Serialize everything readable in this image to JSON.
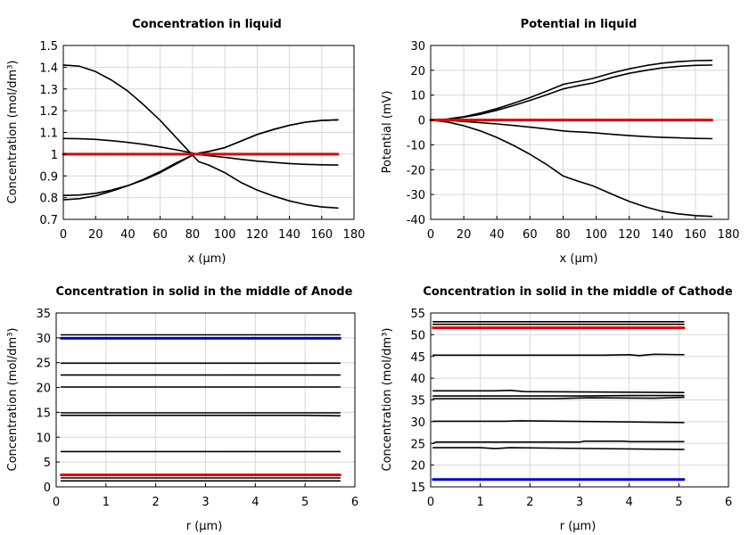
{
  "chart_data": [
    {
      "type": "line",
      "title": "Concentration in liquid",
      "xlabel": "x (µm)",
      "ylabel": "Concentration (mol/dm³)",
      "xlim": [
        0,
        180
      ],
      "ylim": [
        0.7,
        1.5
      ],
      "xticks": [
        "0",
        "20",
        "40",
        "60",
        "80",
        "100",
        "120",
        "140",
        "160",
        "180"
      ],
      "yticks": [
        "0.7",
        "0.8",
        "0.9",
        "1",
        "1.1",
        "1.2",
        "1.3",
        "1.4",
        "1.5"
      ],
      "grid": true,
      "series": [
        {
          "color": "#000000",
          "x": [
            0,
            10,
            20,
            30,
            40,
            50,
            60,
            70,
            80,
            84,
            90,
            100,
            110,
            120,
            130,
            140,
            150,
            160,
            170
          ],
          "y": [
            1.41,
            1.405,
            1.38,
            1.34,
            1.29,
            1.225,
            1.155,
            1.075,
            0.995,
            0.965,
            0.95,
            0.915,
            0.87,
            0.835,
            0.808,
            0.785,
            0.768,
            0.757,
            0.752
          ]
        },
        {
          "color": "#000000",
          "x": [
            0,
            10,
            20,
            30,
            40,
            50,
            60,
            70,
            80,
            84,
            90,
            100,
            110,
            120,
            130,
            140,
            150,
            160,
            170
          ],
          "y": [
            1.072,
            1.071,
            1.068,
            1.062,
            1.054,
            1.045,
            1.033,
            1.02,
            1.005,
            0.998,
            0.993,
            0.985,
            0.976,
            0.968,
            0.962,
            0.957,
            0.953,
            0.951,
            0.95
          ]
        },
        {
          "color": "#000000",
          "x": [
            0,
            10,
            20,
            30,
            40,
            50,
            60,
            70,
            80,
            84,
            90,
            100,
            110,
            120,
            130,
            140,
            150,
            160,
            170
          ],
          "y": [
            0.81,
            0.812,
            0.82,
            0.835,
            0.855,
            0.882,
            0.915,
            0.955,
            0.995,
            1.005,
            1.012,
            1.03,
            1.06,
            1.09,
            1.113,
            1.133,
            1.147,
            1.155,
            1.158
          ]
        },
        {
          "color": "#000000",
          "x": [
            0,
            10,
            20,
            30,
            40,
            50,
            60,
            70,
            80,
            84,
            90,
            100,
            110,
            120,
            130,
            140,
            150,
            160,
            170
          ],
          "y": [
            0.79,
            0.795,
            0.808,
            0.83,
            0.855,
            0.885,
            0.92,
            0.96,
            0.995,
            1.005,
            1.012,
            1.03,
            1.06,
            1.09,
            1.113,
            1.133,
            1.147,
            1.155,
            1.158
          ]
        },
        {
          "color": "#e00000",
          "x": [
            0,
            170
          ],
          "y": [
            1.0,
            1.0
          ]
        }
      ]
    },
    {
      "type": "line",
      "title": "Potential in liquid",
      "xlabel": "x (µm)",
      "ylabel": "Potential (mV)",
      "xlim": [
        0,
        180
      ],
      "ylim": [
        -40,
        30
      ],
      "xticks": [
        "0",
        "20",
        "40",
        "60",
        "80",
        "100",
        "120",
        "140",
        "160",
        "180"
      ],
      "yticks": [
        "-40",
        "-30",
        "-20",
        "-10",
        "0",
        "10",
        "20",
        "30"
      ],
      "grid": true,
      "series": [
        {
          "color": "#000000",
          "x": [
            0,
            10,
            20,
            30,
            40,
            50,
            60,
            70,
            80,
            84,
            90,
            98,
            110,
            120,
            130,
            140,
            150,
            160,
            170
          ],
          "y": [
            0,
            0.4,
            1.3,
            2.8,
            4.6,
            6.7,
            9.0,
            11.6,
            14.3,
            14.9,
            15.6,
            16.7,
            19.0,
            20.6,
            21.9,
            22.9,
            23.5,
            23.9,
            24.0
          ]
        },
        {
          "color": "#000000",
          "x": [
            0,
            10,
            20,
            30,
            40,
            50,
            60,
            70,
            80,
            84,
            90,
            98,
            110,
            120,
            130,
            140,
            150,
            160,
            170
          ],
          "y": [
            0,
            0.3,
            1.1,
            2.3,
            3.9,
            5.8,
            7.9,
            10.1,
            12.5,
            13.1,
            13.9,
            14.9,
            17.2,
            18.8,
            20.0,
            21.0,
            21.6,
            22.0,
            22.1
          ]
        },
        {
          "color": "#000000",
          "x": [
            0,
            10,
            20,
            30,
            40,
            50,
            60,
            70,
            80,
            84,
            90,
            98,
            110,
            120,
            130,
            140,
            150,
            160,
            170
          ],
          "y": [
            0,
            -0.2,
            -0.6,
            -1.1,
            -1.6,
            -2.2,
            -2.9,
            -3.6,
            -4.4,
            -4.6,
            -4.8,
            -5.1,
            -5.8,
            -6.3,
            -6.7,
            -7.0,
            -7.2,
            -7.4,
            -7.5
          ]
        },
        {
          "color": "#000000",
          "x": [
            0,
            10,
            20,
            30,
            40,
            50,
            60,
            70,
            80,
            84,
            90,
            98,
            110,
            120,
            130,
            140,
            150,
            160,
            170
          ],
          "y": [
            0,
            -0.8,
            -2.3,
            -4.4,
            -7.0,
            -10.2,
            -13.8,
            -17.9,
            -22.5,
            -23.5,
            -24.8,
            -26.5,
            -30.0,
            -32.8,
            -35.0,
            -36.8,
            -37.8,
            -38.5,
            -38.8
          ]
        },
        {
          "color": "#e00000",
          "x": [
            0,
            170
          ],
          "y": [
            0,
            0
          ]
        }
      ]
    },
    {
      "type": "line",
      "title": "Concentration in solid in the middle of Anode",
      "xlabel": "r (µm)",
      "ylabel": "Concentration (mol/dm³)",
      "xlim": [
        0,
        6
      ],
      "ylim": [
        0,
        35
      ],
      "xticks": [
        "0",
        "1",
        "2",
        "3",
        "4",
        "5",
        "6"
      ],
      "yticks": [
        "0",
        "5",
        "10",
        "15",
        "20",
        "25",
        "30",
        "35"
      ],
      "grid": true,
      "series": [
        {
          "color": "#000000",
          "x": [
            0.1,
            5.7
          ],
          "y": [
            30.6,
            30.6
          ]
        },
        {
          "color": "#0000cc",
          "x": [
            0.1,
            5.7
          ],
          "y": [
            29.9,
            29.9
          ]
        },
        {
          "color": "#000000",
          "x": [
            0.1,
            5.7
          ],
          "y": [
            24.9,
            24.9
          ]
        },
        {
          "color": "#000000",
          "x": [
            0.1,
            5.7
          ],
          "y": [
            22.5,
            22.5
          ]
        },
        {
          "color": "#000000",
          "x": [
            0.1,
            5.7
          ],
          "y": [
            20.1,
            20.1
          ]
        },
        {
          "color": "#000000",
          "x": [
            0.1,
            5.7
          ],
          "y": [
            14.9,
            14.9
          ]
        },
        {
          "color": "#000000",
          "x": [
            0.1,
            5.0,
            5.7
          ],
          "y": [
            14.4,
            14.4,
            14.3
          ]
        },
        {
          "color": "#000000",
          "x": [
            0.1,
            5.7
          ],
          "y": [
            7.1,
            7.1
          ]
        },
        {
          "color": "#e00000",
          "x": [
            0.1,
            5.7
          ],
          "y": [
            2.4,
            2.4
          ]
        },
        {
          "color": "#000000",
          "x": [
            0.1,
            5.7
          ],
          "y": [
            1.8,
            1.8
          ]
        },
        {
          "color": "#000000",
          "x": [
            0.1,
            5.7
          ],
          "y": [
            1.2,
            1.2
          ]
        }
      ]
    },
    {
      "type": "line",
      "title": "Concentration in solid in the middle of Cathode",
      "xlabel": "r (µm)",
      "ylabel": "Concentration (mol/dm³)",
      "xlim": [
        0,
        6
      ],
      "ylim": [
        15,
        55
      ],
      "xticks": [
        "0",
        "1",
        "2",
        "3",
        "4",
        "5",
        "6"
      ],
      "yticks": [
        "15",
        "20",
        "25",
        "30",
        "35",
        "40",
        "45",
        "50",
        "55"
      ],
      "grid": true,
      "series": [
        {
          "color": "#000000",
          "x": [
            0.05,
            5.1
          ],
          "y": [
            53.0,
            53.0
          ]
        },
        {
          "color": "#000000",
          "x": [
            0.05,
            5.1
          ],
          "y": [
            52.4,
            52.4
          ]
        },
        {
          "color": "#e00000",
          "x": [
            0.05,
            5.1
          ],
          "y": [
            51.6,
            51.6
          ]
        },
        {
          "color": "#000000",
          "x": [
            0.05,
            3.5,
            4.0,
            4.2,
            4.5,
            5.1
          ],
          "y": [
            45.3,
            45.3,
            45.4,
            45.2,
            45.5,
            45.4
          ]
        },
        {
          "color": "#000000",
          "x": [
            0.05,
            1.3,
            1.6,
            1.9,
            5.1
          ],
          "y": [
            37.1,
            37.1,
            37.2,
            36.9,
            36.7
          ]
        },
        {
          "color": "#000000",
          "x": [
            0.05,
            3.0,
            4.0,
            5.1
          ],
          "y": [
            35.9,
            35.9,
            36.0,
            36.0
          ]
        },
        {
          "color": "#000000",
          "x": [
            0.05,
            2.5,
            3.2,
            4.5,
            5.1
          ],
          "y": [
            35.3,
            35.3,
            35.5,
            35.4,
            35.6
          ]
        },
        {
          "color": "#000000",
          "x": [
            0.05,
            1.5,
            1.8,
            5.1
          ],
          "y": [
            30.1,
            30.1,
            30.2,
            29.8
          ]
        },
        {
          "color": "#000000",
          "x": [
            0.05,
            0.1,
            3.0,
            3.1,
            3.9,
            4.0,
            5.1
          ],
          "y": [
            25.0,
            25.3,
            25.3,
            25.5,
            25.5,
            25.4,
            25.4
          ]
        },
        {
          "color": "#000000",
          "x": [
            0.05,
            1.0,
            1.3,
            1.6,
            5.1
          ],
          "y": [
            24.0,
            24.0,
            23.8,
            24.0,
            23.6
          ]
        },
        {
          "color": "#0000cc",
          "x": [
            0.05,
            5.1
          ],
          "y": [
            16.7,
            16.7
          ]
        }
      ]
    }
  ]
}
